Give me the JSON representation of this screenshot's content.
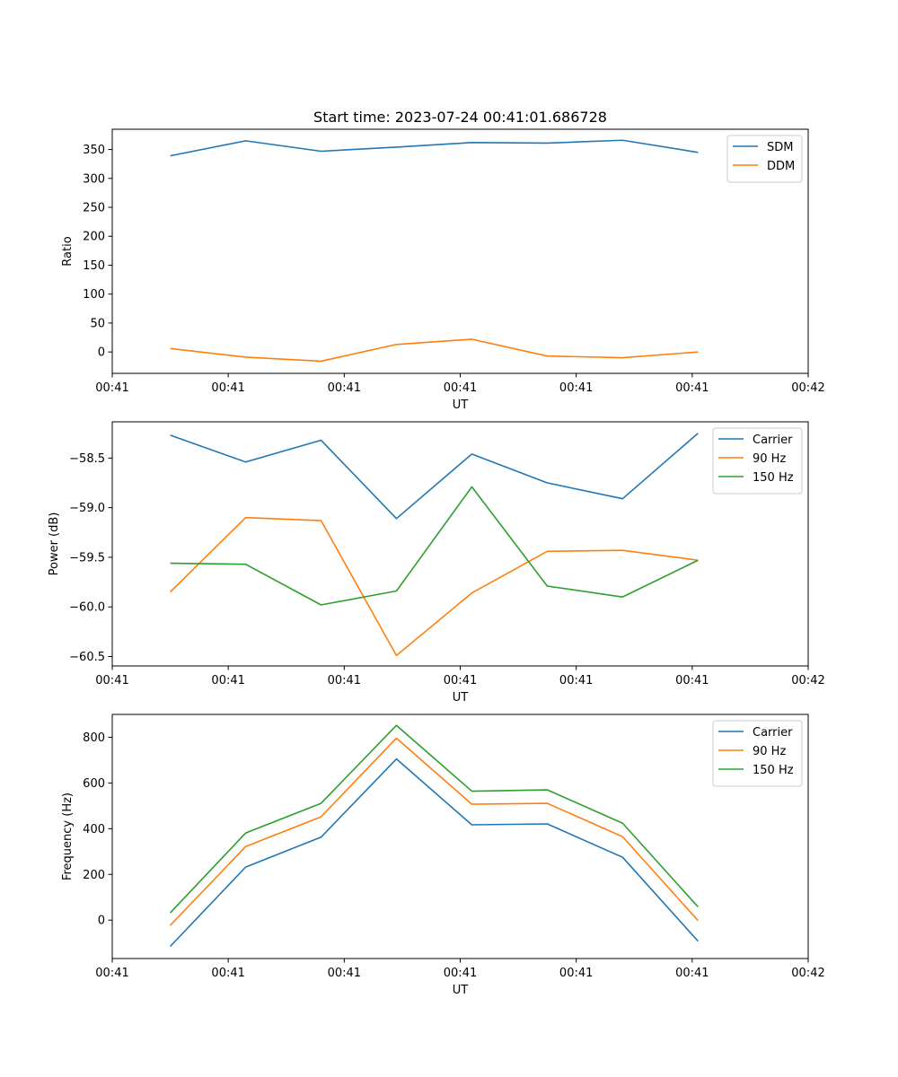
{
  "figure": {
    "title": "Start time: 2023-07-24 00:41:01.686728"
  },
  "colors": {
    "blue": "#1f77b4",
    "orange": "#ff7f0e",
    "green": "#2ca02c"
  },
  "chart_data": [
    {
      "type": "line",
      "title": "Start time: 2023-07-24 00:41:01.686728",
      "xlabel": "UT",
      "ylabel": "Ratio",
      "xlim": [
        0,
        12
      ],
      "x_ticks": [
        0,
        2,
        4,
        6,
        8,
        10,
        12
      ],
      "x_tick_labels": [
        "00:41",
        "00:41",
        "00:41",
        "00:41",
        "00:41",
        "00:41",
        "00:42"
      ],
      "ylim": [
        -37,
        385
      ],
      "y_ticks": [
        0,
        50,
        100,
        150,
        200,
        250,
        300,
        350
      ],
      "y_tick_labels": [
        "0",
        "50",
        "100",
        "150",
        "200",
        "250",
        "300",
        "350"
      ],
      "legend_position": "upper-right",
      "x": [
        1,
        2.3,
        3.6,
        4.9,
        6.2,
        7.5,
        8.8,
        10.1
      ],
      "series": [
        {
          "name": "SDM",
          "color": "#1f77b4",
          "values": [
            339,
            365,
            347,
            354,
            362,
            361,
            366,
            345
          ]
        },
        {
          "name": "DDM",
          "color": "#ff7f0e",
          "values": [
            6,
            -9,
            -16,
            13,
            22,
            -7,
            -10,
            0
          ]
        }
      ]
    },
    {
      "type": "line",
      "title": "",
      "xlabel": "UT",
      "ylabel": "Power (dB)",
      "xlim": [
        0,
        12
      ],
      "x_ticks": [
        0,
        2,
        4,
        6,
        8,
        10,
        12
      ],
      "x_tick_labels": [
        "00:41",
        "00:41",
        "00:41",
        "00:41",
        "00:41",
        "00:41",
        "00:42"
      ],
      "ylim": [
        -60.595,
        -58.135
      ],
      "y_ticks": [
        -60.5,
        -60.0,
        -59.5,
        -59.0,
        -58.5
      ],
      "y_tick_labels": [
        "−60.5",
        "−60.0",
        "−59.5",
        "−59.0",
        "−58.5"
      ],
      "legend_position": "upper-right",
      "x": [
        1,
        2.3,
        3.6,
        4.9,
        6.2,
        7.5,
        8.8,
        10.1
      ],
      "series": [
        {
          "name": "Carrier",
          "color": "#1f77b4",
          "values": [
            -58.27,
            -58.54,
            -58.32,
            -59.11,
            -58.46,
            -58.75,
            -58.91,
            -58.25
          ]
        },
        {
          "name": "90 Hz",
          "color": "#ff7f0e",
          "values": [
            -59.85,
            -59.1,
            -59.13,
            -60.49,
            -59.86,
            -59.44,
            -59.43,
            -59.53
          ]
        },
        {
          "name": "150 Hz",
          "color": "#2ca02c",
          "values": [
            -59.56,
            -59.57,
            -59.98,
            -59.84,
            -58.79,
            -59.79,
            -59.9,
            -59.53
          ]
        }
      ]
    },
    {
      "type": "line",
      "title": "",
      "xlabel": "UT",
      "ylabel": "Frequency (Hz)",
      "xlim": [
        0,
        12
      ],
      "x_ticks": [
        0,
        2,
        4,
        6,
        8,
        10,
        12
      ],
      "x_tick_labels": [
        "00:41",
        "00:41",
        "00:41",
        "00:41",
        "00:41",
        "00:41",
        "00:42"
      ],
      "ylim": [
        -168,
        900
      ],
      "y_ticks": [
        0,
        200,
        400,
        600,
        800
      ],
      "y_tick_labels": [
        "0",
        "200",
        "400",
        "600",
        "800"
      ],
      "legend_position": "upper-right",
      "x": [
        1,
        2.3,
        3.6,
        4.9,
        6.2,
        7.5,
        8.8,
        10.1
      ],
      "series": [
        {
          "name": "Carrier",
          "color": "#1f77b4",
          "values": [
            -115,
            232,
            363,
            705,
            417,
            421,
            275,
            -92
          ]
        },
        {
          "name": "90 Hz",
          "color": "#ff7f0e",
          "values": [
            -23,
            322,
            452,
            796,
            507,
            511,
            365,
            -2
          ]
        },
        {
          "name": "150 Hz",
          "color": "#2ca02c",
          "values": [
            32,
            381,
            511,
            852,
            564,
            570,
            424,
            58
          ]
        }
      ]
    }
  ]
}
